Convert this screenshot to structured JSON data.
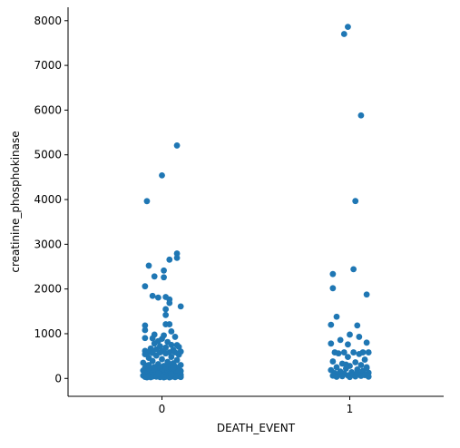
{
  "chart_data": {
    "type": "scatter",
    "subtype": "strip",
    "title": "",
    "xlabel": "DEATH_EVENT",
    "ylabel": "creatinine_phosphokinase",
    "categories": [
      "0",
      "1"
    ],
    "ylim": [
      -400,
      8300
    ],
    "yticks": [
      0,
      1000,
      2000,
      3000,
      4000,
      5000,
      6000,
      7000,
      8000
    ],
    "grid": false,
    "legend": "none",
    "marker_color": "#1f77b4",
    "series": [
      {
        "category": "0",
        "points": [
          {
            "x": 0.08,
            "y": 5209
          },
          {
            "x": 0.0,
            "y": 4540
          },
          {
            "x": -0.08,
            "y": 3964
          },
          {
            "x": 0.08,
            "y": 2794
          },
          {
            "x": 0.08,
            "y": 2695
          },
          {
            "x": 0.04,
            "y": 2656
          },
          {
            "x": -0.07,
            "y": 2522
          },
          {
            "x": 0.01,
            "y": 2413
          },
          {
            "x": 0.01,
            "y": 2261
          },
          {
            "x": -0.04,
            "y": 2281
          },
          {
            "x": -0.09,
            "y": 2060
          },
          {
            "x": -0.05,
            "y": 1846
          },
          {
            "x": -0.02,
            "y": 1808
          },
          {
            "x": 0.02,
            "y": 1820
          },
          {
            "x": 0.04,
            "y": 1767
          },
          {
            "x": 0.04,
            "y": 1688
          },
          {
            "x": 0.1,
            "y": 1610
          },
          {
            "x": 0.02,
            "y": 1548
          },
          {
            "x": 0.02,
            "y": 1419
          },
          {
            "x": 0.02,
            "y": 1211
          },
          {
            "x": 0.04,
            "y": 1211
          },
          {
            "x": -0.09,
            "y": 1185
          },
          {
            "x": -0.09,
            "y": 1080
          },
          {
            "x": 0.05,
            "y": 1051
          },
          {
            "x": -0.04,
            "y": 980
          },
          {
            "x": 0.01,
            "y": 962
          },
          {
            "x": 0.07,
            "y": 930
          },
          {
            "x": -0.09,
            "y": 903
          },
          {
            "x": -0.05,
            "y": 897
          },
          {
            "x": 0.0,
            "y": 885
          },
          {
            "x": -0.02,
            "y": 835
          },
          {
            "x": 0.03,
            "y": 815
          },
          {
            "x": -0.04,
            "y": 780
          },
          {
            "x": 0.05,
            "y": 750
          },
          {
            "x": 0.08,
            "y": 745
          },
          {
            "x": -0.01,
            "y": 720
          },
          {
            "x": 0.09,
            "y": 705
          },
          {
            "x": 0.02,
            "y": 690
          },
          {
            "x": -0.06,
            "y": 670
          },
          {
            "x": -0.03,
            "y": 650
          },
          {
            "x": 0.06,
            "y": 640
          },
          {
            "x": -0.09,
            "y": 615
          },
          {
            "x": 0.0,
            "y": 608
          },
          {
            "x": 0.1,
            "y": 600
          },
          {
            "x": -0.07,
            "y": 590
          },
          {
            "x": 0.04,
            "y": 582
          },
          {
            "x": -0.01,
            "y": 582
          },
          {
            "x": 0.07,
            "y": 582
          },
          {
            "x": -0.05,
            "y": 570
          },
          {
            "x": 0.02,
            "y": 560
          },
          {
            "x": -0.09,
            "y": 540
          },
          {
            "x": 0.09,
            "y": 530
          },
          {
            "x": -0.03,
            "y": 510
          },
          {
            "x": 0.05,
            "y": 480
          },
          {
            "x": -0.07,
            "y": 460
          },
          {
            "x": 0.0,
            "y": 430
          },
          {
            "x": 0.08,
            "y": 410
          },
          {
            "x": -0.05,
            "y": 390
          },
          {
            "x": 0.03,
            "y": 370
          },
          {
            "x": -0.1,
            "y": 350
          },
          {
            "x": 0.06,
            "y": 340
          },
          {
            "x": -0.02,
            "y": 320
          },
          {
            "x": 0.1,
            "y": 300
          },
          {
            "x": -0.08,
            "y": 290
          },
          {
            "x": 0.01,
            "y": 280
          },
          {
            "x": 0.07,
            "y": 265
          },
          {
            "x": -0.04,
            "y": 255
          },
          {
            "x": 0.04,
            "y": 245
          },
          {
            "x": -0.09,
            "y": 235
          },
          {
            "x": -0.01,
            "y": 225
          },
          {
            "x": 0.09,
            "y": 215
          },
          {
            "x": -0.06,
            "y": 205
          },
          {
            "x": 0.02,
            "y": 198
          },
          {
            "x": 0.06,
            "y": 190
          },
          {
            "x": -0.03,
            "y": 182
          },
          {
            "x": -0.1,
            "y": 175
          },
          {
            "x": 0.1,
            "y": 168
          },
          {
            "x": 0.0,
            "y": 160
          },
          {
            "x": -0.07,
            "y": 152
          },
          {
            "x": 0.05,
            "y": 145
          },
          {
            "x": -0.02,
            "y": 138
          },
          {
            "x": 0.08,
            "y": 130
          },
          {
            "x": -0.05,
            "y": 124
          },
          {
            "x": 0.03,
            "y": 118
          },
          {
            "x": -0.09,
            "y": 112
          },
          {
            "x": 0.07,
            "y": 106
          },
          {
            "x": -0.01,
            "y": 100
          },
          {
            "x": 0.04,
            "y": 95
          },
          {
            "x": -0.08,
            "y": 90
          },
          {
            "x": 0.1,
            "y": 85
          },
          {
            "x": -0.04,
            "y": 80
          },
          {
            "x": 0.01,
            "y": 76
          },
          {
            "x": 0.06,
            "y": 72
          },
          {
            "x": -0.06,
            "y": 68
          },
          {
            "x": -0.1,
            "y": 64
          },
          {
            "x": 0.09,
            "y": 60
          },
          {
            "x": -0.02,
            "y": 57
          },
          {
            "x": 0.03,
            "y": 54
          },
          {
            "x": -0.07,
            "y": 51
          },
          {
            "x": 0.08,
            "y": 48
          },
          {
            "x": 0.0,
            "y": 45
          },
          {
            "x": -0.05,
            "y": 42
          },
          {
            "x": 0.05,
            "y": 40
          },
          {
            "x": -0.03,
            "y": 38
          },
          {
            "x": 0.02,
            "y": 36
          },
          {
            "x": -0.09,
            "y": 34
          },
          {
            "x": 0.1,
            "y": 32
          },
          {
            "x": -0.01,
            "y": 30
          },
          {
            "x": 0.07,
            "y": 28
          },
          {
            "x": -0.06,
            "y": 26
          },
          {
            "x": 0.04,
            "y": 25
          },
          {
            "x": -0.08,
            "y": 24
          },
          {
            "x": 0.01,
            "y": 23
          },
          {
            "x": 0.09,
            "y": 168
          },
          {
            "x": -0.04,
            "y": 210
          },
          {
            "x": 0.06,
            "y": 235
          },
          {
            "x": -0.07,
            "y": 300
          },
          {
            "x": 0.03,
            "y": 320
          },
          {
            "x": -0.02,
            "y": 110
          },
          {
            "x": 0.05,
            "y": 88
          }
        ]
      },
      {
        "category": "1",
        "points": [
          {
            "x": -0.03,
            "y": 7702
          },
          {
            "x": -0.01,
            "y": 7861
          },
          {
            "x": 0.06,
            "y": 5882
          },
          {
            "x": 0.03,
            "y": 3966
          },
          {
            "x": 0.02,
            "y": 2442
          },
          {
            "x": -0.09,
            "y": 2334
          },
          {
            "x": 0.09,
            "y": 1876
          },
          {
            "x": -0.09,
            "y": 2017
          },
          {
            "x": -0.07,
            "y": 1380
          },
          {
            "x": -0.1,
            "y": 1199
          },
          {
            "x": 0.04,
            "y": 1185
          },
          {
            "x": 0.0,
            "y": 980
          },
          {
            "x": 0.05,
            "y": 930
          },
          {
            "x": -0.05,
            "y": 860
          },
          {
            "x": 0.09,
            "y": 800
          },
          {
            "x": -0.1,
            "y": 780
          },
          {
            "x": -0.01,
            "y": 760
          },
          {
            "x": 0.07,
            "y": 582
          },
          {
            "x": -0.08,
            "y": 582
          },
          {
            "x": -0.03,
            "y": 582
          },
          {
            "x": 0.02,
            "y": 582
          },
          {
            "x": 0.1,
            "y": 582
          },
          {
            "x": -0.06,
            "y": 560
          },
          {
            "x": 0.05,
            "y": 545
          },
          {
            "x": -0.01,
            "y": 480
          },
          {
            "x": 0.08,
            "y": 420
          },
          {
            "x": -0.09,
            "y": 380
          },
          {
            "x": 0.03,
            "y": 360
          },
          {
            "x": -0.04,
            "y": 330
          },
          {
            "x": 0.06,
            "y": 300
          },
          {
            "x": 0.0,
            "y": 280
          },
          {
            "x": -0.07,
            "y": 250
          },
          {
            "x": 0.09,
            "y": 235
          },
          {
            "x": -0.02,
            "y": 220
          },
          {
            "x": 0.04,
            "y": 200
          },
          {
            "x": -0.1,
            "y": 185
          },
          {
            "x": 0.07,
            "y": 170
          },
          {
            "x": -0.05,
            "y": 155
          },
          {
            "x": 0.01,
            "y": 140
          },
          {
            "x": 0.1,
            "y": 128
          },
          {
            "x": -0.08,
            "y": 118
          },
          {
            "x": -0.03,
            "y": 108
          },
          {
            "x": 0.05,
            "y": 98
          },
          {
            "x": -0.06,
            "y": 90
          },
          {
            "x": 0.02,
            "y": 82
          },
          {
            "x": 0.08,
            "y": 75
          },
          {
            "x": -0.01,
            "y": 68
          },
          {
            "x": -0.09,
            "y": 62
          },
          {
            "x": 0.06,
            "y": 56
          },
          {
            "x": -0.04,
            "y": 50
          },
          {
            "x": 0.03,
            "y": 45
          },
          {
            "x": 0.1,
            "y": 40
          },
          {
            "x": -0.07,
            "y": 36
          },
          {
            "x": 0.0,
            "y": 32
          },
          {
            "x": 0.09,
            "y": 250
          },
          {
            "x": -0.02,
            "y": 310
          },
          {
            "x": 0.04,
            "y": 130
          }
        ]
      }
    ]
  }
}
